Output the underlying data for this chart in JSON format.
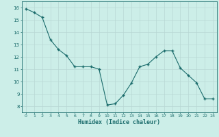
{
  "x": [
    0,
    1,
    2,
    3,
    4,
    5,
    6,
    7,
    8,
    9,
    10,
    11,
    12,
    13,
    14,
    15,
    16,
    17,
    18,
    19,
    20,
    21,
    22,
    23
  ],
  "y": [
    15.9,
    15.6,
    15.2,
    13.4,
    12.6,
    12.1,
    11.2,
    11.2,
    11.2,
    11.0,
    8.1,
    8.2,
    8.9,
    9.9,
    11.2,
    11.4,
    12.0,
    12.5,
    12.5,
    11.1,
    10.5,
    9.9,
    8.6,
    8.6
  ],
  "line_color": "#1a6b6b",
  "marker": "+",
  "markersize": 3.5,
  "markeredgewidth": 1.0,
  "bg_color": "#cceee8",
  "grid_color": "#b8d8d4",
  "tick_color": "#1a6b6b",
  "label_color": "#1a6b6b",
  "xlabel": "Humidex (Indice chaleur)",
  "xlabel_fontsize": 6.0,
  "xlim": [
    -0.5,
    23.5
  ],
  "ylim": [
    7.5,
    16.5
  ],
  "yticks": [
    8,
    9,
    10,
    11,
    12,
    13,
    14,
    15,
    16
  ],
  "xticks": [
    0,
    1,
    2,
    3,
    4,
    5,
    6,
    7,
    8,
    9,
    10,
    11,
    12,
    13,
    14,
    15,
    16,
    17,
    18,
    19,
    20,
    21,
    22,
    23
  ],
  "linewidth": 0.8
}
